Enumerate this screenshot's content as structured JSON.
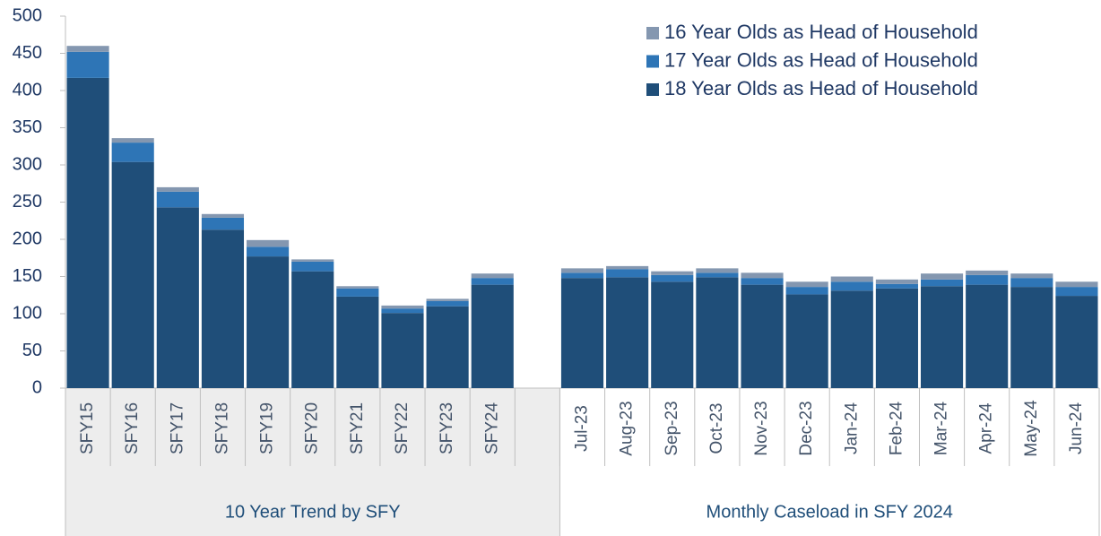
{
  "chart_data": {
    "type": "stacked_bar",
    "categories": [
      "SFY15",
      "SFY16",
      "SFY17",
      "SFY18",
      "SFY19",
      "SFY20",
      "SFY21",
      "SFY22",
      "SFY23",
      "SFY24",
      null,
      "Jul-23",
      "Aug-23",
      "Sep-23",
      "Oct-23",
      "Nov-23",
      "Dec-23",
      "Jan-24",
      "Feb-24",
      "Mar-24",
      "Apr-24",
      "May-24",
      "Jun-24"
    ],
    "groups": [
      {
        "label": "10 Year Trend by SFY",
        "span": 11
      },
      {
        "label": "Monthly Caseload in SFY 2024",
        "span": 12
      }
    ],
    "series": [
      {
        "name": "18 Year Olds as Head of Household",
        "color": "#1f4e79",
        "values": [
          417,
          304,
          243,
          213,
          177,
          157,
          123,
          101,
          110,
          139,
          null,
          148,
          149,
          143,
          149,
          139,
          126,
          131,
          134,
          137,
          139,
          136,
          124
        ]
      },
      {
        "name": "17 Year Olds as Head of Household",
        "color": "#2e75b6",
        "values": [
          35,
          26,
          21,
          16,
          13,
          13,
          11,
          6,
          7,
          9,
          null,
          7,
          11,
          9,
          6,
          9,
          10,
          12,
          6,
          9,
          13,
          12,
          12
        ]
      },
      {
        "name": "16 Year Olds as Head of Household",
        "color": "#8497b0",
        "values": [
          8,
          6,
          6,
          5,
          9,
          3,
          3,
          4,
          3,
          6,
          null,
          6,
          4,
          5,
          6,
          7,
          7,
          7,
          6,
          8,
          6,
          6,
          7
        ]
      }
    ],
    "ylim": [
      0,
      500
    ],
    "yticks": [
      0,
      50,
      100,
      150,
      200,
      250,
      300,
      350,
      400,
      450,
      500
    ],
    "legend": "upper right"
  }
}
